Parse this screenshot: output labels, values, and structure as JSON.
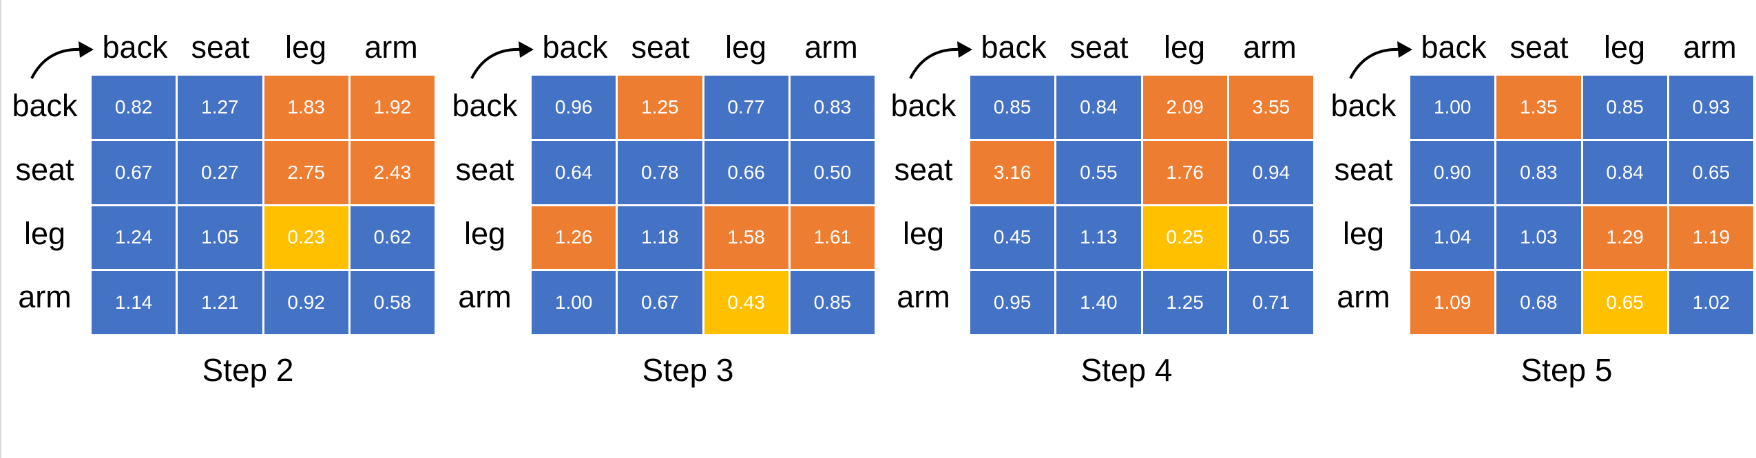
{
  "columns": [
    "back",
    "seat",
    "leg",
    "arm"
  ],
  "rows": [
    "back",
    "seat",
    "leg",
    "arm"
  ],
  "colors": {
    "blue": "#4472c4",
    "orange": "#ed7d31",
    "yellow": "#ffc000"
  },
  "steps": [
    {
      "caption": "Step 2",
      "values": [
        [
          "0.82",
          "1.27",
          "1.83",
          "1.92"
        ],
        [
          "0.67",
          "0.27",
          "2.75",
          "2.43"
        ],
        [
          "1.24",
          "1.05",
          "0.23",
          "0.62"
        ],
        [
          "1.14",
          "1.21",
          "0.92",
          "0.58"
        ]
      ],
      "colors": [
        [
          "blue",
          "blue",
          "orange",
          "orange"
        ],
        [
          "blue",
          "blue",
          "orange",
          "orange"
        ],
        [
          "blue",
          "blue",
          "yellow",
          "blue"
        ],
        [
          "blue",
          "blue",
          "blue",
          "blue"
        ]
      ]
    },
    {
      "caption": "Step 3",
      "values": [
        [
          "0.96",
          "1.25",
          "0.77",
          "0.83"
        ],
        [
          "0.64",
          "0.78",
          "0.66",
          "0.50"
        ],
        [
          "1.26",
          "1.18",
          "1.58",
          "1.61"
        ],
        [
          "1.00",
          "0.67",
          "0.43",
          "0.85"
        ]
      ],
      "colors": [
        [
          "blue",
          "orange",
          "blue",
          "blue"
        ],
        [
          "blue",
          "blue",
          "blue",
          "blue"
        ],
        [
          "orange",
          "blue",
          "orange",
          "orange"
        ],
        [
          "blue",
          "blue",
          "yellow",
          "blue"
        ]
      ]
    },
    {
      "caption": "Step 4",
      "values": [
        [
          "0.85",
          "0.84",
          "2.09",
          "3.55"
        ],
        [
          "3.16",
          "0.55",
          "1.76",
          "0.94"
        ],
        [
          "0.45",
          "1.13",
          "0.25",
          "0.55"
        ],
        [
          "0.95",
          "1.40",
          "1.25",
          "0.71"
        ]
      ],
      "colors": [
        [
          "blue",
          "blue",
          "orange",
          "orange"
        ],
        [
          "orange",
          "blue",
          "orange",
          "blue"
        ],
        [
          "blue",
          "blue",
          "yellow",
          "blue"
        ],
        [
          "blue",
          "blue",
          "blue",
          "blue"
        ]
      ]
    },
    {
      "caption": "Step 5",
      "values": [
        [
          "1.00",
          "1.35",
          "0.85",
          "0.93"
        ],
        [
          "0.90",
          "0.83",
          "0.84",
          "0.65"
        ],
        [
          "1.04",
          "1.03",
          "1.29",
          "1.19"
        ],
        [
          "1.09",
          "0.68",
          "0.65",
          "1.02"
        ]
      ],
      "colors": [
        [
          "blue",
          "orange",
          "blue",
          "blue"
        ],
        [
          "blue",
          "blue",
          "blue",
          "blue"
        ],
        [
          "blue",
          "blue",
          "orange",
          "orange"
        ],
        [
          "orange",
          "blue",
          "yellow",
          "blue"
        ]
      ]
    }
  ]
}
